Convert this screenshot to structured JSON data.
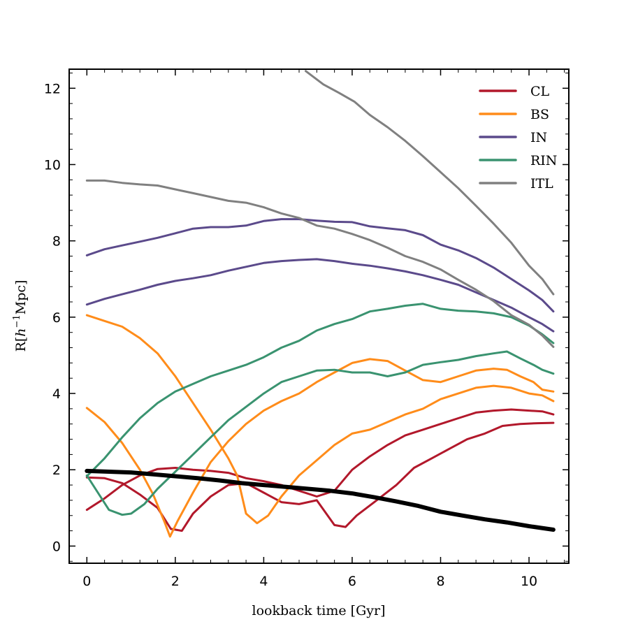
{
  "chart_data": {
    "type": "line",
    "xlabel": "lookback time [Gyr]",
    "ylabel_prefix": "R[",
    "ylabel_h": "h",
    "ylabel_exp": "−1",
    "ylabel_suffix": "Mpc]",
    "xlim": [
      -0.4,
      10.9
    ],
    "ylim": [
      -0.45,
      12.5
    ],
    "xticks": [
      0,
      2,
      4,
      6,
      8,
      10
    ],
    "yticks": [
      0,
      2,
      4,
      6,
      8,
      10,
      12
    ],
    "grid": false,
    "legend_position": "top-right",
    "legend": [
      {
        "label": "CL",
        "color": "#b2182b"
      },
      {
        "label": "BS",
        "color": "#ff8c1a"
      },
      {
        "label": "IN",
        "color": "#5b4a8b"
      },
      {
        "label": "RIN",
        "color": "#3a9370"
      },
      {
        "label": "ITL",
        "color": "#808080"
      }
    ],
    "series": [
      {
        "group": "CL",
        "color": "#b2182b",
        "width": 3,
        "points": [
          [
            0,
            0.95
          ],
          [
            0.4,
            1.25
          ],
          [
            0.8,
            1.6
          ],
          [
            1.2,
            1.85
          ],
          [
            1.6,
            2.02
          ],
          [
            2.0,
            2.05
          ],
          [
            2.4,
            2.0
          ],
          [
            2.8,
            1.97
          ],
          [
            3.2,
            1.92
          ],
          [
            3.6,
            1.78
          ],
          [
            4.0,
            1.7
          ],
          [
            4.4,
            1.6
          ],
          [
            4.8,
            1.45
          ],
          [
            5.2,
            1.3
          ],
          [
            5.6,
            1.45
          ],
          [
            6.0,
            2.0
          ],
          [
            6.4,
            2.35
          ],
          [
            6.8,
            2.65
          ],
          [
            7.2,
            2.9
          ],
          [
            7.6,
            3.05
          ],
          [
            8.0,
            3.2
          ],
          [
            8.4,
            3.35
          ],
          [
            8.8,
            3.5
          ],
          [
            9.2,
            3.55
          ],
          [
            9.6,
            3.58
          ],
          [
            10.0,
            3.55
          ],
          [
            10.3,
            3.53
          ],
          [
            10.55,
            3.45
          ]
        ]
      },
      {
        "group": "CL",
        "color": "#b2182b",
        "width": 3,
        "points": [
          [
            0,
            1.8
          ],
          [
            0.4,
            1.78
          ],
          [
            0.8,
            1.65
          ],
          [
            1.2,
            1.35
          ],
          [
            1.6,
            1.0
          ],
          [
            1.9,
            0.45
          ],
          [
            2.15,
            0.4
          ],
          [
            2.4,
            0.85
          ],
          [
            2.8,
            1.3
          ],
          [
            3.2,
            1.6
          ],
          [
            3.6,
            1.65
          ],
          [
            4.0,
            1.4
          ],
          [
            4.4,
            1.15
          ],
          [
            4.8,
            1.1
          ],
          [
            5.2,
            1.2
          ],
          [
            5.6,
            0.55
          ],
          [
            5.85,
            0.5
          ],
          [
            6.1,
            0.8
          ],
          [
            6.5,
            1.15
          ],
          [
            7.0,
            1.6
          ],
          [
            7.4,
            2.05
          ],
          [
            7.8,
            2.3
          ],
          [
            8.2,
            2.55
          ],
          [
            8.6,
            2.8
          ],
          [
            9.0,
            2.95
          ],
          [
            9.4,
            3.15
          ],
          [
            9.8,
            3.2
          ],
          [
            10.2,
            3.22
          ],
          [
            10.55,
            3.23
          ]
        ]
      },
      {
        "group": "BS",
        "color": "#ff8c1a",
        "width": 3,
        "points": [
          [
            0,
            6.05
          ],
          [
            0.4,
            5.9
          ],
          [
            0.8,
            5.75
          ],
          [
            1.2,
            5.45
          ],
          [
            1.6,
            5.05
          ],
          [
            2.0,
            4.45
          ],
          [
            2.4,
            3.75
          ],
          [
            2.8,
            3.05
          ],
          [
            3.2,
            2.3
          ],
          [
            3.4,
            1.85
          ],
          [
            3.6,
            0.85
          ],
          [
            3.85,
            0.6
          ],
          [
            4.1,
            0.8
          ],
          [
            4.4,
            1.3
          ],
          [
            4.8,
            1.85
          ],
          [
            5.2,
            2.25
          ],
          [
            5.6,
            2.65
          ],
          [
            6.0,
            2.95
          ],
          [
            6.4,
            3.05
          ],
          [
            6.8,
            3.25
          ],
          [
            7.2,
            3.45
          ],
          [
            7.6,
            3.6
          ],
          [
            8.0,
            3.85
          ],
          [
            8.4,
            4.0
          ],
          [
            8.8,
            4.15
          ],
          [
            9.2,
            4.2
          ],
          [
            9.6,
            4.15
          ],
          [
            10.0,
            4.0
          ],
          [
            10.3,
            3.95
          ],
          [
            10.55,
            3.8
          ]
        ]
      },
      {
        "group": "BS",
        "color": "#ff8c1a",
        "width": 3,
        "points": [
          [
            0,
            3.62
          ],
          [
            0.4,
            3.25
          ],
          [
            0.8,
            2.7
          ],
          [
            1.2,
            2.0
          ],
          [
            1.5,
            1.35
          ],
          [
            1.75,
            0.65
          ],
          [
            1.88,
            0.25
          ],
          [
            2.05,
            0.65
          ],
          [
            2.4,
            1.4
          ],
          [
            2.8,
            2.2
          ],
          [
            3.2,
            2.75
          ],
          [
            3.6,
            3.2
          ],
          [
            4.0,
            3.55
          ],
          [
            4.4,
            3.8
          ],
          [
            4.8,
            4.0
          ],
          [
            5.2,
            4.3
          ],
          [
            5.6,
            4.55
          ],
          [
            6.0,
            4.8
          ],
          [
            6.4,
            4.9
          ],
          [
            6.8,
            4.85
          ],
          [
            7.2,
            4.6
          ],
          [
            7.6,
            4.35
          ],
          [
            8.0,
            4.3
          ],
          [
            8.4,
            4.45
          ],
          [
            8.8,
            4.6
          ],
          [
            9.2,
            4.65
          ],
          [
            9.5,
            4.62
          ],
          [
            9.8,
            4.45
          ],
          [
            10.1,
            4.3
          ],
          [
            10.3,
            4.1
          ],
          [
            10.55,
            4.05
          ]
        ]
      },
      {
        "group": "IN",
        "color": "#5b4a8b",
        "width": 3,
        "points": [
          [
            0,
            7.62
          ],
          [
            0.4,
            7.78
          ],
          [
            0.8,
            7.88
          ],
          [
            1.2,
            7.98
          ],
          [
            1.6,
            8.08
          ],
          [
            2.0,
            8.2
          ],
          [
            2.4,
            8.32
          ],
          [
            2.8,
            8.36
          ],
          [
            3.2,
            8.36
          ],
          [
            3.6,
            8.4
          ],
          [
            4.0,
            8.52
          ],
          [
            4.4,
            8.57
          ],
          [
            4.8,
            8.57
          ],
          [
            5.2,
            8.53
          ],
          [
            5.6,
            8.5
          ],
          [
            6.0,
            8.49
          ],
          [
            6.4,
            8.38
          ],
          [
            6.8,
            8.33
          ],
          [
            7.2,
            8.28
          ],
          [
            7.6,
            8.15
          ],
          [
            8.0,
            7.9
          ],
          [
            8.4,
            7.75
          ],
          [
            8.8,
            7.55
          ],
          [
            9.2,
            7.3
          ],
          [
            9.6,
            7.0
          ],
          [
            10.0,
            6.7
          ],
          [
            10.3,
            6.45
          ],
          [
            10.55,
            6.15
          ]
        ]
      },
      {
        "group": "IN",
        "color": "#5b4a8b",
        "width": 3,
        "points": [
          [
            0,
            6.33
          ],
          [
            0.4,
            6.48
          ],
          [
            0.8,
            6.6
          ],
          [
            1.2,
            6.72
          ],
          [
            1.6,
            6.85
          ],
          [
            2.0,
            6.95
          ],
          [
            2.4,
            7.02
          ],
          [
            2.8,
            7.1
          ],
          [
            3.2,
            7.22
          ],
          [
            3.6,
            7.32
          ],
          [
            4.0,
            7.42
          ],
          [
            4.4,
            7.47
          ],
          [
            4.8,
            7.5
          ],
          [
            5.2,
            7.52
          ],
          [
            5.6,
            7.47
          ],
          [
            6.0,
            7.4
          ],
          [
            6.4,
            7.35
          ],
          [
            6.8,
            7.28
          ],
          [
            7.2,
            7.2
          ],
          [
            7.6,
            7.1
          ],
          [
            8.0,
            6.98
          ],
          [
            8.4,
            6.85
          ],
          [
            8.8,
            6.65
          ],
          [
            9.2,
            6.45
          ],
          [
            9.6,
            6.25
          ],
          [
            10.0,
            6.0
          ],
          [
            10.3,
            5.82
          ],
          [
            10.55,
            5.63
          ]
        ]
      },
      {
        "group": "RIN",
        "color": "#3a9370",
        "width": 3,
        "points": [
          [
            0,
            1.83
          ],
          [
            0.4,
            2.3
          ],
          [
            0.8,
            2.85
          ],
          [
            1.2,
            3.35
          ],
          [
            1.6,
            3.75
          ],
          [
            2.0,
            4.05
          ],
          [
            2.4,
            4.25
          ],
          [
            2.8,
            4.45
          ],
          [
            3.2,
            4.6
          ],
          [
            3.6,
            4.75
          ],
          [
            4.0,
            4.95
          ],
          [
            4.4,
            5.2
          ],
          [
            4.8,
            5.38
          ],
          [
            5.2,
            5.65
          ],
          [
            5.6,
            5.82
          ],
          [
            6.0,
            5.95
          ],
          [
            6.4,
            6.15
          ],
          [
            6.8,
            6.22
          ],
          [
            7.2,
            6.3
          ],
          [
            7.6,
            6.35
          ],
          [
            8.0,
            6.22
          ],
          [
            8.4,
            6.17
          ],
          [
            8.8,
            6.15
          ],
          [
            9.2,
            6.1
          ],
          [
            9.6,
            6.0
          ],
          [
            10.0,
            5.78
          ],
          [
            10.3,
            5.55
          ],
          [
            10.55,
            5.32
          ]
        ]
      },
      {
        "group": "RIN",
        "color": "#3a9370",
        "width": 3,
        "points": [
          [
            0,
            1.85
          ],
          [
            0.25,
            1.4
          ],
          [
            0.5,
            0.95
          ],
          [
            0.8,
            0.82
          ],
          [
            1.0,
            0.85
          ],
          [
            1.3,
            1.1
          ],
          [
            1.6,
            1.5
          ],
          [
            2.0,
            1.95
          ],
          [
            2.4,
            2.4
          ],
          [
            2.8,
            2.85
          ],
          [
            3.2,
            3.3
          ],
          [
            3.6,
            3.65
          ],
          [
            4.0,
            4.0
          ],
          [
            4.4,
            4.3
          ],
          [
            4.8,
            4.45
          ],
          [
            5.2,
            4.6
          ],
          [
            5.6,
            4.62
          ],
          [
            6.0,
            4.55
          ],
          [
            6.4,
            4.55
          ],
          [
            6.8,
            4.45
          ],
          [
            7.2,
            4.55
          ],
          [
            7.6,
            4.75
          ],
          [
            8.0,
            4.82
          ],
          [
            8.4,
            4.88
          ],
          [
            8.8,
            4.98
          ],
          [
            9.2,
            5.05
          ],
          [
            9.5,
            5.1
          ],
          [
            9.8,
            4.92
          ],
          [
            10.1,
            4.75
          ],
          [
            10.3,
            4.62
          ],
          [
            10.55,
            4.52
          ]
        ]
      },
      {
        "group": "ITL",
        "color": "#808080",
        "width": 3,
        "points": [
          [
            0,
            9.58
          ],
          [
            0.4,
            9.58
          ],
          [
            0.8,
            9.52
          ],
          [
            1.2,
            9.48
          ],
          [
            1.6,
            9.45
          ],
          [
            2.0,
            9.35
          ],
          [
            2.4,
            9.25
          ],
          [
            2.8,
            9.15
          ],
          [
            3.2,
            9.05
          ],
          [
            3.6,
            9.0
          ],
          [
            4.0,
            8.88
          ],
          [
            4.4,
            8.72
          ],
          [
            4.8,
            8.6
          ],
          [
            5.2,
            8.4
          ],
          [
            5.6,
            8.32
          ],
          [
            6.0,
            8.18
          ],
          [
            6.4,
            8.02
          ],
          [
            6.8,
            7.82
          ],
          [
            7.2,
            7.6
          ],
          [
            7.6,
            7.45
          ],
          [
            8.0,
            7.25
          ],
          [
            8.4,
            6.98
          ],
          [
            8.8,
            6.72
          ],
          [
            9.2,
            6.42
          ],
          [
            9.6,
            6.05
          ],
          [
            10.0,
            5.8
          ],
          [
            10.3,
            5.52
          ],
          [
            10.55,
            5.22
          ]
        ]
      },
      {
        "group": "ITL",
        "color": "#808080",
        "width": 3,
        "points": [
          [
            4.95,
            12.45
          ],
          [
            5.35,
            12.1
          ],
          [
            5.7,
            11.88
          ],
          [
            6.05,
            11.65
          ],
          [
            6.4,
            11.3
          ],
          [
            6.8,
            10.98
          ],
          [
            7.2,
            10.62
          ],
          [
            7.6,
            10.22
          ],
          [
            8.0,
            9.8
          ],
          [
            8.4,
            9.38
          ],
          [
            8.8,
            8.92
          ],
          [
            9.2,
            8.45
          ],
          [
            9.6,
            7.95
          ],
          [
            10.0,
            7.35
          ],
          [
            10.3,
            7.0
          ],
          [
            10.55,
            6.6
          ]
        ]
      },
      {
        "group": "median",
        "color": "#000000",
        "width": 6,
        "points": [
          [
            0,
            1.97
          ],
          [
            0.5,
            1.95
          ],
          [
            1.0,
            1.93
          ],
          [
            1.5,
            1.88
          ],
          [
            2.0,
            1.83
          ],
          [
            2.5,
            1.78
          ],
          [
            3.0,
            1.72
          ],
          [
            3.5,
            1.65
          ],
          [
            4.0,
            1.6
          ],
          [
            4.5,
            1.55
          ],
          [
            5.0,
            1.5
          ],
          [
            5.5,
            1.45
          ],
          [
            6.0,
            1.38
          ],
          [
            6.5,
            1.28
          ],
          [
            7.0,
            1.17
          ],
          [
            7.5,
            1.05
          ],
          [
            8.0,
            0.9
          ],
          [
            8.5,
            0.8
          ],
          [
            9.0,
            0.7
          ],
          [
            9.5,
            0.62
          ],
          [
            10.0,
            0.52
          ],
          [
            10.55,
            0.43
          ]
        ]
      }
    ]
  }
}
